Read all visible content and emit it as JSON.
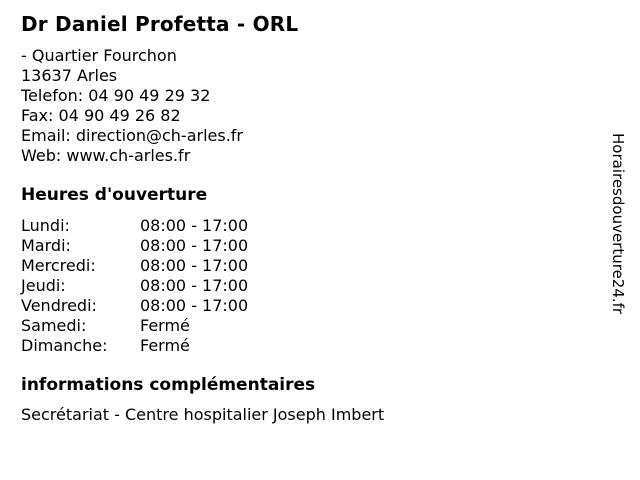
{
  "header": {
    "title": "Dr Daniel Profetta - ORL"
  },
  "contact": {
    "address_line1": "- Quartier Fourchon",
    "address_line2": "13637 Arles",
    "phone_label": "Telefon:",
    "phone_value": "04 90 49 29 32",
    "fax_label": "Fax:",
    "fax_value": "04 90 49 26 82",
    "email_label": "Email:",
    "email_value": "direction@ch-arles.fr",
    "web_label": "Web:",
    "web_value": "www.ch-arles.fr"
  },
  "hours": {
    "heading": "Heures d'ouverture",
    "rows": [
      {
        "day": "Lundi:",
        "hours": "08:00 - 17:00"
      },
      {
        "day": "Mardi:",
        "hours": "08:00 - 17:00"
      },
      {
        "day": "Mercredi:",
        "hours": "08:00 - 17:00"
      },
      {
        "day": "Jeudi:",
        "hours": "08:00 - 17:00"
      },
      {
        "day": "Vendredi:",
        "hours": "08:00 - 17:00"
      },
      {
        "day": "Samedi:",
        "hours": "Fermé"
      },
      {
        "day": "Dimanche:",
        "hours": "Fermé"
      }
    ]
  },
  "additional_info": {
    "heading": "informations complémentaires",
    "text": "Secrétariat - Centre hospitalier Joseph Imbert"
  },
  "watermark": {
    "text": "Horairesdouverture24.fr"
  },
  "colors": {
    "text": "#000000",
    "background": "#ffffff"
  }
}
